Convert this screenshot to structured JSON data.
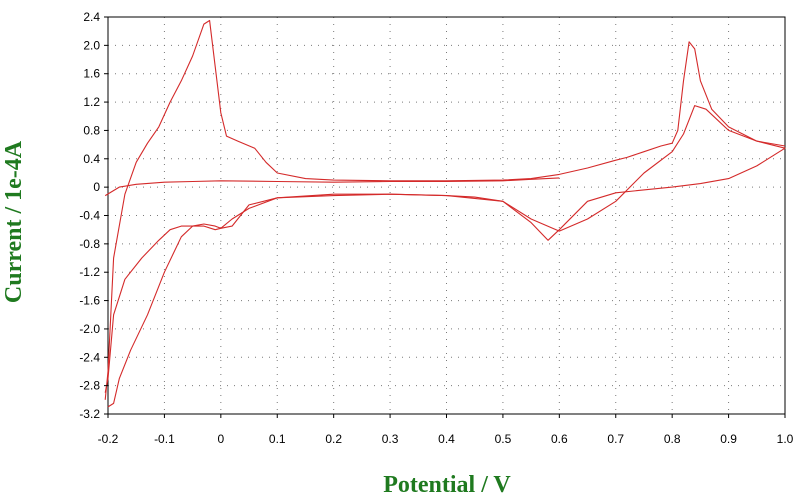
{
  "chart_data": {
    "type": "line",
    "xlabel": "Potential / V",
    "ylabel": "Current / 1e-4A",
    "xlim": [
      -0.2,
      1.0
    ],
    "ylim": [
      -3.2,
      2.4
    ],
    "x_ticks": [
      "-0.2",
      "-0.1",
      "0",
      "0.1",
      "0.2",
      "0.3",
      "0.4",
      "0.5",
      "0.6",
      "0.7",
      "0.8",
      "0.9",
      "1.0"
    ],
    "y_ticks": [
      "2.4",
      "2.0",
      "1.6",
      "1.2",
      "0.8",
      "0.4",
      "0",
      "-0.4",
      "-0.8",
      "-1.2",
      "-1.6",
      "-2.0",
      "-2.4",
      "-2.8",
      "-3.2"
    ],
    "grid": true,
    "legend": "none",
    "colors": {
      "series": "#d42a2a",
      "axis_title": "#1f7a1f",
      "grid": "#7a7a7a"
    },
    "series": [
      {
        "x": [
          -0.205,
          -0.2,
          -0.19,
          -0.17,
          -0.15,
          -0.13,
          -0.11,
          -0.09,
          -0.07,
          -0.05,
          -0.03,
          -0.02,
          -0.01,
          0.0,
          0.01,
          0.03,
          0.06,
          0.08,
          0.1,
          0.15,
          0.2,
          0.3,
          0.4,
          0.5,
          0.55,
          0.6,
          0.65,
          0.7,
          0.72,
          0.75,
          0.78,
          0.8,
          0.81,
          0.82,
          0.83,
          0.84,
          0.85,
          0.87,
          0.9,
          0.95,
          1.0,
          0.95,
          0.9,
          0.85,
          0.8,
          0.7,
          0.65,
          0.6,
          0.58,
          0.55,
          0.5,
          0.45,
          0.4,
          0.3,
          0.2,
          0.1,
          0.05,
          0.02,
          0.0,
          -0.01,
          -0.03,
          -0.05,
          -0.07,
          -0.1,
          -0.13,
          -0.16,
          -0.18,
          -0.19,
          -0.2
        ],
        "y": [
          -3.0,
          -2.6,
          -1.0,
          -0.1,
          0.35,
          0.62,
          0.85,
          1.2,
          1.5,
          1.85,
          2.3,
          2.35,
          1.7,
          1.05,
          0.72,
          0.65,
          0.55,
          0.35,
          0.2,
          0.12,
          0.1,
          0.09,
          0.09,
          0.1,
          0.12,
          0.18,
          0.27,
          0.38,
          0.42,
          0.5,
          0.58,
          0.62,
          0.8,
          1.5,
          2.05,
          1.95,
          1.5,
          1.1,
          0.85,
          0.65,
          0.55,
          0.3,
          0.12,
          0.05,
          0.0,
          -0.08,
          -0.2,
          -0.6,
          -0.75,
          -0.5,
          -0.2,
          -0.14,
          -0.12,
          -0.1,
          -0.12,
          -0.15,
          -0.25,
          -0.55,
          -0.58,
          -0.55,
          -0.52,
          -0.55,
          -0.7,
          -1.2,
          -1.8,
          -2.3,
          -2.7,
          -3.05,
          -3.1
        ]
      },
      {
        "x": [
          -0.205,
          -0.2,
          -0.19,
          -0.17,
          -0.14,
          -0.11,
          -0.09,
          -0.07,
          -0.05,
          -0.03,
          -0.01,
          0.0,
          0.02,
          0.05,
          0.1,
          0.2,
          0.3,
          0.4,
          0.5,
          0.55,
          0.6,
          0.65,
          0.7,
          0.75,
          0.8,
          0.82,
          0.84,
          0.86,
          0.9,
          0.95,
          1.0
        ],
        "y": [
          -2.9,
          -2.7,
          -1.8,
          -1.3,
          -1.0,
          -0.75,
          -0.6,
          -0.55,
          -0.55,
          -0.55,
          -0.6,
          -0.58,
          -0.45,
          -0.3,
          -0.15,
          -0.1,
          -0.1,
          -0.12,
          -0.2,
          -0.45,
          -0.62,
          -0.45,
          -0.2,
          0.2,
          0.5,
          0.75,
          1.15,
          1.1,
          0.8,
          0.65,
          0.58
        ]
      },
      {
        "x": [
          -0.205,
          -0.18,
          -0.15,
          -0.1,
          -0.05,
          0.0,
          0.1,
          0.2,
          0.3,
          0.4,
          0.5,
          0.55,
          0.6
        ],
        "y": [
          -0.12,
          0.0,
          0.04,
          0.07,
          0.08,
          0.09,
          0.08,
          0.07,
          0.08,
          0.08,
          0.09,
          0.11,
          0.13
        ]
      }
    ]
  }
}
